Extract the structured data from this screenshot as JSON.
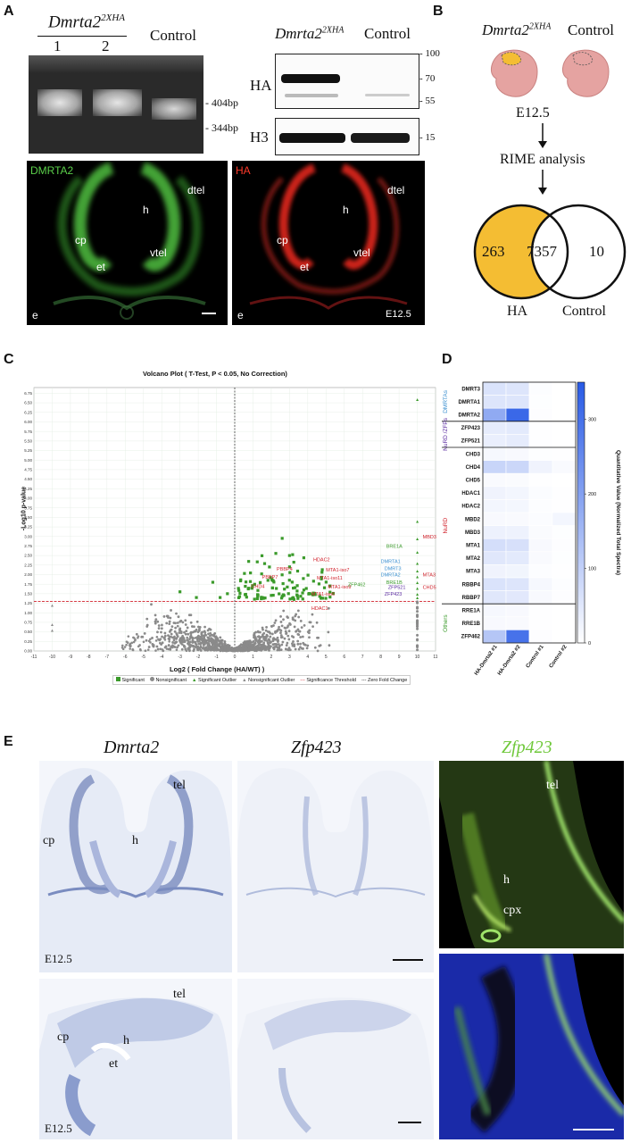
{
  "panels": {
    "a": "A",
    "b": "B",
    "c": "C",
    "d": "D",
    "e": "E"
  },
  "panelA": {
    "gel_title": "Dmrta2",
    "gel_title_sup": "2XHA",
    "lane1": "1",
    "lane2": "2",
    "gel_control": "Control",
    "bp_upper": "- 404bp",
    "bp_lower": "- 344bp",
    "wb_title": "Dmrta2",
    "wb_title_sup": "2XHA",
    "wb_control": "Control",
    "wb_row1": "HA",
    "wb_row2": "H3",
    "mw": [
      "100",
      "70",
      "55",
      "15"
    ],
    "img1_label": "DMRTA2",
    "img2_label": "HA",
    "regions": {
      "dtel": "dtel",
      "h": "h",
      "cp": "cp",
      "vtel": "vtel",
      "et": "et",
      "e": "e"
    },
    "stage": "E12.5"
  },
  "panelB": {
    "title": "Dmrta2",
    "title_sup": "2XHA",
    "control": "Control",
    "stage": "E12.5",
    "analysis": "RIME analysis",
    "venn_left": "263",
    "venn_mid": "7357",
    "venn_right": "10",
    "label_left": "HA",
    "label_right": "Control",
    "colors": {
      "ha": "#f4bd33",
      "embryo": "#e5a3a1"
    }
  },
  "panelC": {
    "title": "Volcano Plot ( T-Test, P < 0.05, No Correction)",
    "xlabel": "Log2 ( Fold Change (HA/WT) )",
    "ylabel": "-Log10 p-value",
    "legend": [
      "Significant",
      "Nonsignificant",
      "Significant Outlier",
      "Nonsignificant Outlier",
      "Significance Threshold",
      "Zero Fold Change"
    ],
    "threshold": 1.3,
    "xlim": [
      -11,
      11
    ],
    "ylim": [
      0,
      6.9
    ],
    "labels": [
      {
        "text": "HDAC2",
        "x": 4.3,
        "y": 2.35,
        "color": "red"
      },
      {
        "text": "PBBP4",
        "x": 2.3,
        "y": 2.1,
        "color": "red"
      },
      {
        "text": "MTA1-iso7",
        "x": 5.0,
        "y": 2.08,
        "color": "red"
      },
      {
        "text": "PBBP7",
        "x": 1.5,
        "y": 1.9,
        "color": "red"
      },
      {
        "text": "CHD4",
        "x": 0.9,
        "y": 1.65,
        "color": "red"
      },
      {
        "text": "MTA1-iso11",
        "x": 4.5,
        "y": 1.87,
        "color": "red"
      },
      {
        "text": "MTA1-iso9",
        "x": 5.1,
        "y": 1.64,
        "color": "red"
      },
      {
        "text": "MTA1-iso6",
        "x": 4.2,
        "y": 1.45,
        "color": "red"
      },
      {
        "text": "HDAC1",
        "x": 4.2,
        "y": 1.08,
        "color": "red"
      },
      {
        "text": "MBD3",
        "x": 10.3,
        "y": 2.95,
        "color": "red"
      },
      {
        "text": "MTA3",
        "x": 10.3,
        "y": 1.95,
        "color": "red"
      },
      {
        "text": "CHD5",
        "x": 10.3,
        "y": 1.62,
        "color": "red"
      },
      {
        "text": "BRE1A",
        "x": 8.3,
        "y": 2.7,
        "color": "green"
      },
      {
        "text": "DMRTA1",
        "x": 8.0,
        "y": 2.3,
        "color": "blue"
      },
      {
        "text": "DMRT3",
        "x": 8.2,
        "y": 2.12,
        "color": "blue"
      },
      {
        "text": "DMRTA2",
        "x": 8.0,
        "y": 1.95,
        "color": "blue"
      },
      {
        "text": "BRE1B",
        "x": 8.3,
        "y": 1.75,
        "color": "green"
      },
      {
        "text": "ZFP462",
        "x": 6.2,
        "y": 1.7,
        "color": "green"
      },
      {
        "text": "ZFP521",
        "x": 8.4,
        "y": 1.62,
        "color": "purple"
      },
      {
        "text": "ZFP423",
        "x": 8.2,
        "y": 1.45,
        "color": "purple"
      }
    ],
    "colors": {
      "red": "#d0202a",
      "green": "#3a9a2a",
      "blue": "#3a8fd0",
      "purple": "#5a2aa0",
      "sig": "#3a9a2a",
      "nonsig": "#8a8a8a"
    }
  },
  "chart_data": {
    "type": "heatmap",
    "rows": [
      "DMRT3",
      "DMRTA1",
      "DMRTA2",
      "ZFP423",
      "ZFP521",
      "CHD3",
      "CHD4",
      "CHD5",
      "HDAC1",
      "HDAC2",
      "MBD2",
      "MBD3",
      "MTA1",
      "MTA2",
      "MTA3",
      "RBBP4",
      "RBBP7",
      "RRE1A",
      "RRE1B",
      "ZFP462"
    ],
    "columns": [
      "HA-Dmrta2 #1",
      "HA-Dmrta2 #2",
      "Control #1",
      "Control #2"
    ],
    "groups": [
      {
        "name": "DMRTAs",
        "rows": [
          0,
          2
        ]
      },
      {
        "name": "NuRD /ZFPs",
        "rows": [
          3,
          4
        ]
      },
      {
        "name": "NuRD",
        "rows": [
          5,
          16
        ]
      },
      {
        "name": "Others",
        "rows": [
          17,
          19
        ]
      }
    ],
    "values": [
      [
        60,
        55,
        5,
        0
      ],
      [
        55,
        55,
        3,
        0
      ],
      [
        180,
        320,
        4,
        0
      ],
      [
        40,
        45,
        2,
        0
      ],
      [
        35,
        40,
        2,
        0
      ],
      [
        15,
        12,
        3,
        2
      ],
      [
        90,
        85,
        25,
        10
      ],
      [
        10,
        8,
        2,
        0
      ],
      [
        25,
        20,
        6,
        2
      ],
      [
        20,
        18,
        5,
        2
      ],
      [
        12,
        10,
        6,
        20
      ],
      [
        30,
        28,
        8,
        3
      ],
      [
        70,
        65,
        12,
        4
      ],
      [
        50,
        45,
        10,
        3
      ],
      [
        25,
        22,
        5,
        2
      ],
      [
        60,
        55,
        15,
        5
      ],
      [
        50,
        48,
        12,
        4
      ],
      [
        15,
        12,
        2,
        0
      ],
      [
        12,
        10,
        2,
        0
      ],
      [
        120,
        300,
        4,
        0
      ]
    ],
    "colorbar": {
      "label": "Quantitative Value (Normalized Total Spectra)",
      "ticks": [
        0,
        100,
        200,
        300
      ],
      "min": 0,
      "max": 350
    }
  },
  "panelE": {
    "col1": "Dmrta2",
    "col2": "Zfp423",
    "col3": "Zfp423",
    "regions": {
      "tel": "tel",
      "cp": "cp",
      "h": "h",
      "et": "et",
      "cpx": "cpx"
    },
    "stage": "E12.5"
  }
}
